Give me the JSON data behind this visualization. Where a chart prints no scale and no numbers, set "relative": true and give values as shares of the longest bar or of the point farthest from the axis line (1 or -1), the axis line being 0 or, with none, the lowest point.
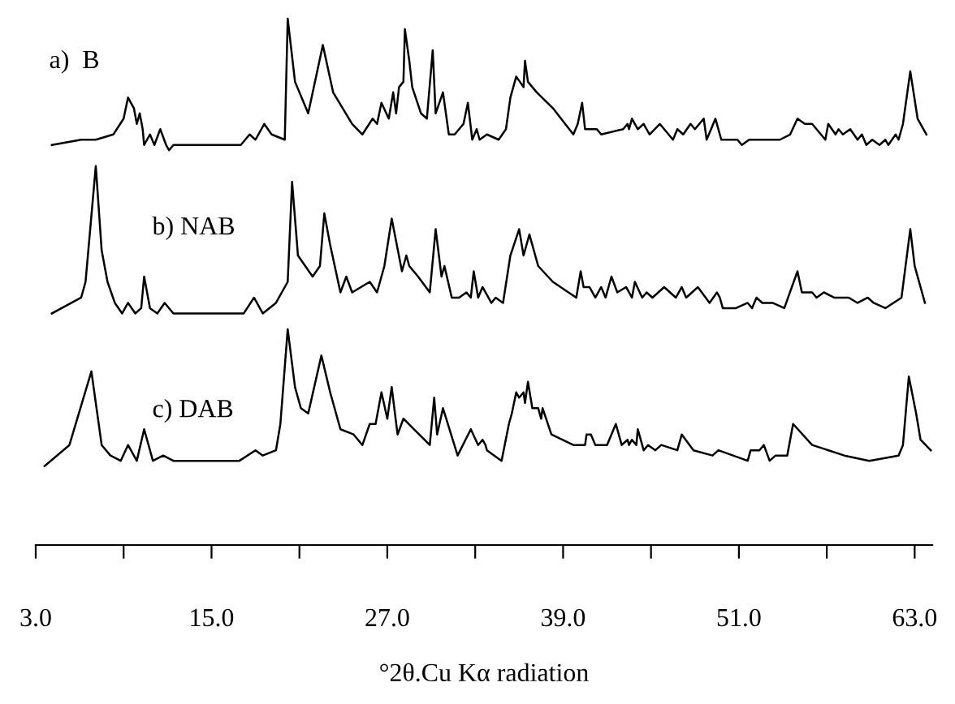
{
  "chart_data": {
    "type": "line",
    "relative": true,
    "xlabel": "°2θ.Cu Kα radiation",
    "xlim": [
      3,
      64.2
    ],
    "xticks": [
      {
        "value": 3,
        "label": "3.0"
      },
      {
        "value": 9,
        "label": null
      },
      {
        "value": 15,
        "label": "15.0"
      },
      {
        "value": 21,
        "label": null
      },
      {
        "value": 27,
        "label": "27.0"
      },
      {
        "value": 33,
        "label": null
      },
      {
        "value": 39,
        "label": "39.0"
      },
      {
        "value": 45,
        "label": null
      },
      {
        "value": 51,
        "label": "51.0"
      },
      {
        "value": 57,
        "label": null
      },
      {
        "value": 63,
        "label": "63.0"
      }
    ],
    "grid": false,
    "legend": false,
    "marker": "none",
    "line_style": "solid",
    "series": [
      {
        "name": "a)  B",
        "color": "#000000",
        "x": [
          4.1,
          6.1,
          7.1,
          8.3,
          9.0,
          9.3,
          9.7,
          9.9,
          10.1,
          10.3,
          10.4,
          10.8,
          11.1,
          11.5,
          11.9,
          12.1,
          12.4,
          12.8,
          13.1,
          15.3,
          17.0,
          17.6,
          18.0,
          18.6,
          19.1,
          20.0,
          20.2,
          20.7,
          21.6,
          22.6,
          23.3,
          24.6,
          25.3,
          26.0,
          26.3,
          26.6,
          27.1,
          27.4,
          27.6,
          27.8,
          28.1,
          28.2,
          28.5,
          28.7,
          29.3,
          29.7,
          30.1,
          30.3,
          30.8,
          31.2,
          31.6,
          32.2,
          32.5,
          32.8,
          33.1,
          33.3,
          33.8,
          34.6,
          35.1,
          35.4,
          35.8,
          36.3,
          36.4,
          36.6,
          37.2,
          38.3,
          39.7,
          40.0,
          40.3,
          40.5,
          41.3,
          41.6,
          43.1,
          43.4,
          43.5,
          43.7,
          44.1,
          44.5,
          44.9,
          45.6,
          46.5,
          46.8,
          47.2,
          47.7,
          48.0,
          48.6,
          48.8,
          49.4,
          49.8,
          50.5,
          50.9,
          51.2,
          51.7,
          53.8,
          54.5,
          55.0,
          55.5,
          56.0,
          56.9,
          57.1,
          57.6,
          57.8,
          58.1,
          58.6,
          59.1,
          59.4,
          59.7,
          60.1,
          60.6,
          61.0,
          61.2,
          61.7,
          61.9,
          62.2,
          62.7,
          63.2,
          63.8
        ],
        "values": [
          0.76,
          0.77,
          0.77,
          0.78,
          0.81,
          0.85,
          0.83,
          0.8,
          0.82,
          0.79,
          0.76,
          0.78,
          0.76,
          0.79,
          0.76,
          0.75,
          0.76,
          0.76,
          0.76,
          0.76,
          0.76,
          0.78,
          0.77,
          0.8,
          0.78,
          0.77,
          1.0,
          0.88,
          0.82,
          0.95,
          0.86,
          0.8,
          0.78,
          0.81,
          0.8,
          0.84,
          0.81,
          0.86,
          0.82,
          0.87,
          0.88,
          0.98,
          0.92,
          0.87,
          0.82,
          0.81,
          0.94,
          0.82,
          0.86,
          0.78,
          0.78,
          0.8,
          0.84,
          0.77,
          0.79,
          0.77,
          0.78,
          0.77,
          0.79,
          0.85,
          0.89,
          0.87,
          0.92,
          0.88,
          0.86,
          0.83,
          0.78,
          0.8,
          0.84,
          0.79,
          0.79,
          0.78,
          0.79,
          0.8,
          0.79,
          0.81,
          0.79,
          0.8,
          0.78,
          0.8,
          0.77,
          0.79,
          0.78,
          0.8,
          0.79,
          0.81,
          0.77,
          0.81,
          0.77,
          0.77,
          0.77,
          0.76,
          0.77,
          0.77,
          0.78,
          0.81,
          0.8,
          0.8,
          0.77,
          0.8,
          0.78,
          0.79,
          0.78,
          0.79,
          0.77,
          0.78,
          0.76,
          0.77,
          0.76,
          0.77,
          0.76,
          0.78,
          0.77,
          0.8,
          0.9,
          0.81,
          0.78
        ]
      },
      {
        "name": "b) NAB",
        "color": "#000000",
        "x": [
          4.1,
          6.1,
          6.4,
          7.1,
          7.5,
          7.9,
          8.4,
          8.9,
          9.3,
          9.8,
          10.2,
          10.4,
          10.8,
          11.3,
          11.8,
          12.4,
          13.1,
          13.6,
          14.4,
          15.8,
          17.2,
          17.9,
          18.5,
          19.4,
          20.2,
          20.5,
          20.9,
          21.9,
          22.4,
          22.7,
          23.1,
          23.8,
          24.2,
          24.6,
          25.8,
          26.3,
          26.8,
          27.3,
          28.0,
          28.3,
          28.5,
          29.1,
          29.9,
          30.3,
          30.7,
          30.9,
          31.4,
          31.9,
          32.4,
          32.7,
          32.9,
          33.2,
          33.5,
          34.1,
          34.4,
          34.9,
          35.4,
          36.0,
          36.3,
          36.7,
          37.3,
          38.3,
          39.9,
          40.2,
          40.4,
          40.8,
          41.2,
          41.6,
          41.9,
          42.3,
          42.7,
          43.3,
          43.7,
          43.9,
          44.4,
          44.7,
          45.1,
          45.9,
          46.7,
          47.1,
          47.4,
          48.2,
          49.0,
          49.5,
          49.7,
          49.9,
          50.8,
          51.6,
          51.9,
          52.2,
          52.6,
          53.3,
          54.1,
          55.0,
          55.3,
          56.0,
          56.3,
          56.8,
          57.5,
          58.5,
          59.1,
          59.8,
          60.2,
          61.0,
          62.1,
          62.7,
          63.0,
          63.7
        ],
        "values": [
          0.44,
          0.47,
          0.5,
          0.72,
          0.56,
          0.5,
          0.46,
          0.44,
          0.46,
          0.44,
          0.45,
          0.51,
          0.45,
          0.44,
          0.46,
          0.44,
          0.44,
          0.44,
          0.44,
          0.44,
          0.44,
          0.47,
          0.44,
          0.46,
          0.5,
          0.69,
          0.55,
          0.51,
          0.53,
          0.63,
          0.57,
          0.48,
          0.51,
          0.48,
          0.5,
          0.48,
          0.53,
          0.62,
          0.52,
          0.55,
          0.53,
          0.51,
          0.48,
          0.6,
          0.51,
          0.53,
          0.47,
          0.47,
          0.48,
          0.47,
          0.52,
          0.47,
          0.49,
          0.46,
          0.47,
          0.46,
          0.55,
          0.6,
          0.55,
          0.59,
          0.53,
          0.5,
          0.47,
          0.52,
          0.49,
          0.49,
          0.47,
          0.49,
          0.47,
          0.51,
          0.48,
          0.49,
          0.47,
          0.5,
          0.47,
          0.48,
          0.47,
          0.49,
          0.47,
          0.49,
          0.47,
          0.49,
          0.46,
          0.48,
          0.47,
          0.45,
          0.45,
          0.46,
          0.45,
          0.47,
          0.46,
          0.46,
          0.45,
          0.52,
          0.48,
          0.48,
          0.47,
          0.48,
          0.47,
          0.47,
          0.46,
          0.47,
          0.46,
          0.45,
          0.47,
          0.6,
          0.53,
          0.46
        ]
      },
      {
        "name": "c) DAB",
        "color": "#000000",
        "x": [
          3.6,
          5.3,
          6.8,
          7.5,
          8.1,
          8.8,
          9.3,
          9.9,
          10.4,
          11.0,
          11.7,
          12.4,
          13.5,
          14.6,
          16.9,
          18.0,
          18.5,
          19.4,
          19.7,
          20.2,
          20.7,
          21.1,
          21.6,
          22.5,
          23.1,
          23.8,
          24.7,
          25.3,
          25.8,
          26.2,
          26.6,
          27.0,
          27.3,
          27.7,
          28.1,
          29.9,
          30.2,
          30.4,
          30.8,
          31.8,
          32.7,
          33.2,
          33.5,
          33.7,
          33.8,
          34.8,
          35.3,
          35.5,
          35.8,
          36.0,
          36.3,
          36.4,
          36.6,
          36.9,
          37.3,
          37.5,
          37.6,
          38.2,
          39.7,
          40.5,
          40.6,
          40.9,
          41.2,
          42.0,
          42.6,
          43.0,
          43.4,
          43.5,
          43.7,
          44.0,
          44.1,
          44.5,
          44.8,
          45.3,
          45.7,
          46.8,
          47.1,
          47.9,
          49.2,
          49.6,
          51.6,
          51.8,
          52.4,
          52.7,
          53.1,
          53.5,
          54.3,
          54.7,
          56.0,
          58.2,
          59.9,
          61.9,
          62.2,
          62.6,
          63.1,
          63.4,
          64.1
        ],
        "values": [
          0.15,
          0.19,
          0.33,
          0.19,
          0.17,
          0.16,
          0.19,
          0.16,
          0.22,
          0.16,
          0.17,
          0.16,
          0.16,
          0.16,
          0.16,
          0.18,
          0.17,
          0.18,
          0.23,
          0.41,
          0.3,
          0.26,
          0.25,
          0.36,
          0.29,
          0.22,
          0.21,
          0.19,
          0.23,
          0.23,
          0.29,
          0.24,
          0.3,
          0.21,
          0.24,
          0.19,
          0.28,
          0.21,
          0.26,
          0.17,
          0.22,
          0.19,
          0.2,
          0.19,
          0.18,
          0.16,
          0.23,
          0.25,
          0.29,
          0.28,
          0.29,
          0.27,
          0.31,
          0.26,
          0.26,
          0.24,
          0.26,
          0.21,
          0.19,
          0.19,
          0.21,
          0.21,
          0.19,
          0.19,
          0.23,
          0.19,
          0.2,
          0.19,
          0.2,
          0.19,
          0.22,
          0.18,
          0.19,
          0.18,
          0.19,
          0.18,
          0.21,
          0.18,
          0.17,
          0.18,
          0.16,
          0.18,
          0.18,
          0.19,
          0.16,
          0.17,
          0.17,
          0.23,
          0.19,
          0.17,
          0.16,
          0.17,
          0.19,
          0.32,
          0.25,
          0.2,
          0.18
        ]
      }
    ]
  }
}
